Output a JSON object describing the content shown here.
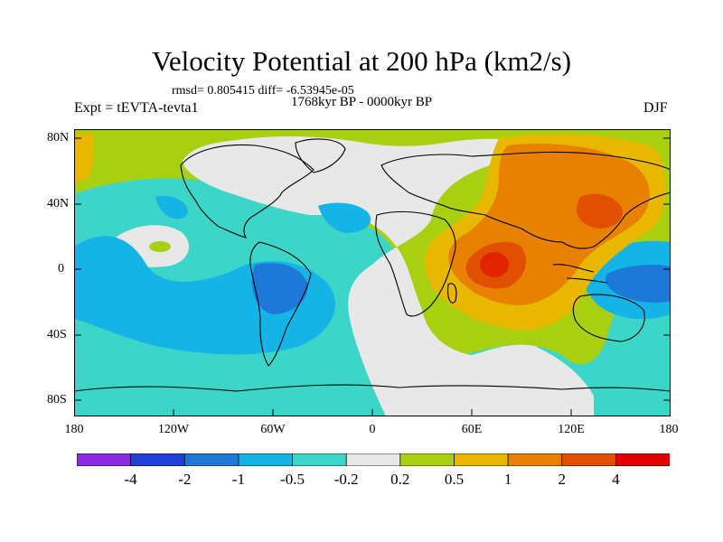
{
  "title": "Velocity Potential at 200 hPa (km2/s)",
  "stats_text": "rmsd= 0.805415 diff= -6.53945e-05",
  "period_text": "1768kyr BP - 0000kyr BP",
  "experiment_text": "Expt = tEVTA-tevta1",
  "season": "DJF",
  "lat_labels": [
    "80N",
    "40N",
    "0",
    "40S",
    "80S"
  ],
  "lon_labels": [
    "180",
    "120W",
    "60W",
    "0",
    "60E",
    "120E",
    "180"
  ],
  "colorbar": {
    "colors": [
      "#8a2be2",
      "#2040d8",
      "#1e78d8",
      "#14b4e6",
      "#3cd6c8",
      "#e8e8e8",
      "#a8d010",
      "#e8b800",
      "#e88000",
      "#e05000",
      "#e00000"
    ],
    "labels": [
      "-4",
      "-2",
      "-1",
      "-0.5",
      "-0.2",
      "0.2",
      "0.5",
      "1",
      "2",
      "4"
    ]
  }
}
